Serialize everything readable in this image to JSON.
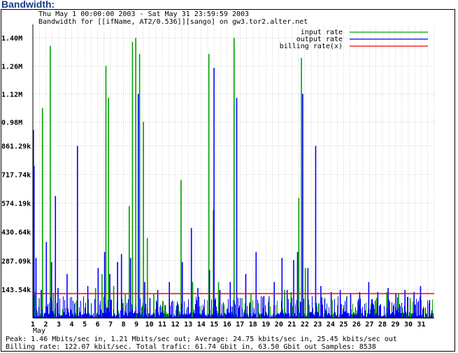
{
  "page": {
    "heading": "Bandwidth:"
  },
  "chart_data": {
    "type": "bar",
    "title_lines": [
      "Thu May  1 00:00:00 2003 - Sat May 31 23:59:59 2003",
      "Bandwidth for [[ifName, AT2/0.536]][sango] on gw3.tor2.alter.net"
    ],
    "ylabels": [
      "143.54k",
      "287.09k",
      "430.64k",
      "574.19k",
      "717.74k",
      "861.29k",
      "0.98M",
      "1.12M",
      "1.26M",
      "1.40M"
    ],
    "yticks": [
      143540,
      287090,
      430640,
      574190,
      717740,
      861290,
      980000,
      1120000,
      1260000,
      1400000
    ],
    "ylim": [
      0,
      1460000
    ],
    "xlabels": [
      "1",
      "2",
      "3",
      "4",
      "5",
      "6",
      "7",
      "8",
      "9",
      "10",
      "11",
      "12",
      "13",
      "14",
      "15",
      "16",
      "17",
      "18",
      "19",
      "20",
      "21",
      "22",
      "23",
      "24",
      "25",
      "26",
      "27",
      "28",
      "29",
      "30",
      "31"
    ],
    "month_label": "May",
    "legend": [
      {
        "name": "input rate",
        "color": "#00a000"
      },
      {
        "name": "output rate",
        "color": "#0000ff"
      },
      {
        "name": "billing rate(x)",
        "color": "#ff0000"
      }
    ],
    "billing_rate": 122070,
    "input_spikes": [
      [
        1.1,
        130000
      ],
      [
        1.45,
        100000
      ],
      [
        1.7,
        1050000
      ],
      [
        2.3,
        1360000
      ],
      [
        2.55,
        120000
      ],
      [
        4.4,
        90000
      ],
      [
        5.8,
        150000
      ],
      [
        6.3,
        220000
      ],
      [
        6.6,
        1260000
      ],
      [
        6.8,
        1100000
      ],
      [
        7.2,
        160000
      ],
      [
        8.1,
        120000
      ],
      [
        8.4,
        560000
      ],
      [
        8.65,
        1380000
      ],
      [
        8.9,
        1400000
      ],
      [
        9.2,
        1320000
      ],
      [
        9.5,
        980000
      ],
      [
        9.8,
        400000
      ],
      [
        10.3,
        120000
      ],
      [
        12.4,
        690000
      ],
      [
        13.3,
        180000
      ],
      [
        14.55,
        1320000
      ],
      [
        14.9,
        540000
      ],
      [
        15.3,
        180000
      ],
      [
        16.5,
        1400000
      ],
      [
        17.1,
        100000
      ],
      [
        17.8,
        120000
      ],
      [
        19.2,
        110000
      ],
      [
        20.4,
        140000
      ],
      [
        20.9,
        130000
      ],
      [
        21.5,
        600000
      ],
      [
        21.7,
        1300000
      ],
      [
        22.0,
        250000
      ],
      [
        23.5,
        100000
      ],
      [
        25.2,
        110000
      ],
      [
        26.1,
        90000
      ],
      [
        27.5,
        100000
      ],
      [
        28.3,
        130000
      ],
      [
        29.2,
        120000
      ],
      [
        30.1,
        100000
      ]
    ],
    "output_spikes": [
      [
        1.0,
        940000
      ],
      [
        1.05,
        760000
      ],
      [
        1.2,
        300000
      ],
      [
        1.6,
        140000
      ],
      [
        2.0,
        380000
      ],
      [
        2.4,
        280000
      ],
      [
        2.7,
        610000
      ],
      [
        2.9,
        150000
      ],
      [
        3.6,
        220000
      ],
      [
        4.4,
        860000
      ],
      [
        5.2,
        160000
      ],
      [
        6.0,
        250000
      ],
      [
        6.5,
        330000
      ],
      [
        6.9,
        220000
      ],
      [
        7.5,
        280000
      ],
      [
        7.8,
        320000
      ],
      [
        8.5,
        300000
      ],
      [
        9.1,
        1120000
      ],
      [
        9.6,
        180000
      ],
      [
        10.0,
        100000
      ],
      [
        10.6,
        140000
      ],
      [
        11.5,
        180000
      ],
      [
        12.5,
        280000
      ],
      [
        13.2,
        450000
      ],
      [
        13.7,
        150000
      ],
      [
        14.6,
        240000
      ],
      [
        14.95,
        1250000
      ],
      [
        15.4,
        140000
      ],
      [
        16.2,
        180000
      ],
      [
        16.7,
        1100000
      ],
      [
        17.4,
        220000
      ],
      [
        18.2,
        330000
      ],
      [
        18.8,
        110000
      ],
      [
        19.6,
        180000
      ],
      [
        20.2,
        300000
      ],
      [
        20.6,
        140000
      ],
      [
        21.1,
        290000
      ],
      [
        21.4,
        330000
      ],
      [
        21.8,
        1120000
      ],
      [
        22.2,
        250000
      ],
      [
        22.8,
        860000
      ],
      [
        23.2,
        160000
      ],
      [
        24.0,
        130000
      ],
      [
        24.7,
        140000
      ],
      [
        25.5,
        120000
      ],
      [
        26.2,
        130000
      ],
      [
        26.9,
        180000
      ],
      [
        27.6,
        130000
      ],
      [
        28.4,
        150000
      ],
      [
        29.0,
        120000
      ],
      [
        29.7,
        140000
      ],
      [
        30.4,
        130000
      ],
      [
        30.9,
        160000
      ],
      [
        31.6,
        90000
      ]
    ]
  },
  "footer": {
    "line1": "Peak: 1.46 Mbits/sec in, 1.21 Mbits/sec out; Average: 24.75 kbits/sec in, 25.45 kbits/sec out",
    "line2": "Billing rate: 122.07 kbit/sec. Total trafic: 61.74 Gbit in, 63.50 Gbit out  Samples: 8538"
  }
}
